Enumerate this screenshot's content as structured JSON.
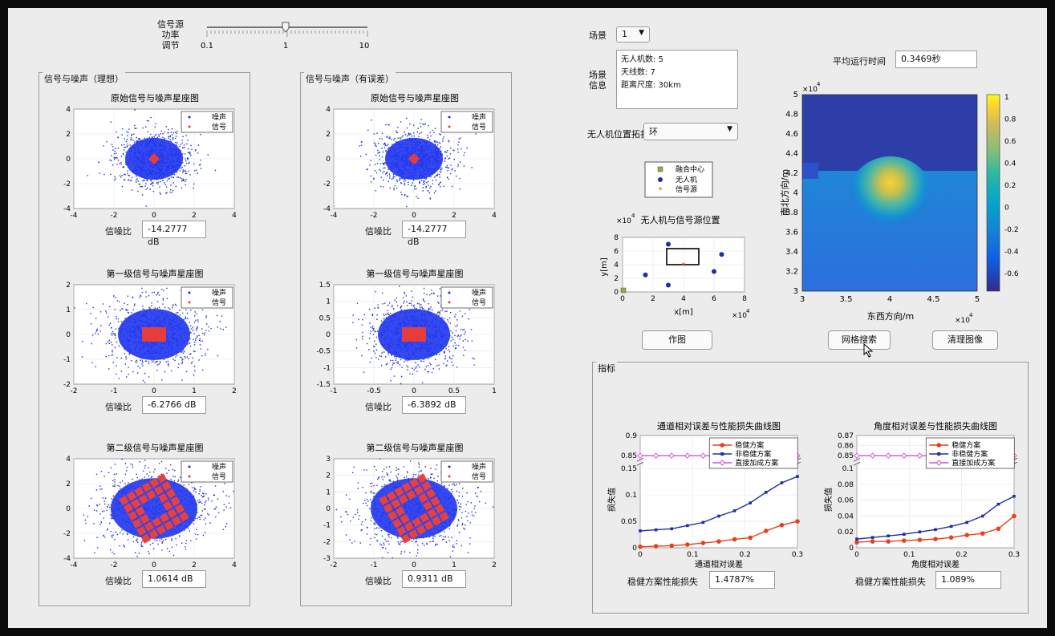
{
  "slider": {
    "label_lines": [
      "信号源",
      "功率",
      "调节"
    ],
    "ticks": [
      "0.1",
      "1",
      "10"
    ],
    "value": 1
  },
  "left_panel": {
    "title": "信号与噪声（理想）"
  },
  "right_panel": {
    "title": "信号与噪声（有误差）"
  },
  "snr_label": "信噪比",
  "legend": {
    "noise": "噪声",
    "signal": "信号"
  },
  "constellations": {
    "ideal": [
      {
        "title": "原始信号与噪声星座图",
        "snr": "-14.2777 dB",
        "xticks": [
          "-4",
          "-2",
          "0",
          "2",
          "4"
        ],
        "yticks": [
          "4",
          "2",
          "0",
          "-2",
          "-4"
        ]
      },
      {
        "title": "第一级信号与噪声星座图",
        "snr": "-6.2766 dB",
        "xticks": [
          "-2",
          "-1",
          "0",
          "1",
          "2"
        ],
        "yticks": [
          "2",
          "1",
          "0",
          "-1",
          "-2"
        ]
      },
      {
        "title": "第二级信号与噪声星座图",
        "snr": "1.0614 dB",
        "xticks": [
          "-4",
          "-2",
          "0",
          "2",
          "4"
        ],
        "yticks": [
          "4",
          "2",
          "0",
          "-2",
          "-4"
        ]
      }
    ],
    "error": [
      {
        "title": "原始信号与噪声星座图",
        "snr": "-14.2777 dB",
        "xticks": [
          "-4",
          "-2",
          "0",
          "2",
          "4"
        ],
        "yticks": [
          "4",
          "2",
          "0",
          "-2",
          "-4"
        ]
      },
      {
        "title": "第一级信号与噪声星座图",
        "snr": "-6.3892 dB",
        "xticks": [
          "-1",
          "-0.5",
          "0",
          "0.5",
          "1"
        ],
        "yticks": [
          "1.5",
          "1",
          "0.5",
          "0",
          "-0.5",
          "-1",
          "-1.5"
        ]
      },
      {
        "title": "第二级信号与噪声星座图",
        "snr": "0.9311 dB",
        "xticks": [
          "-2",
          "-1",
          "0",
          "1",
          "2"
        ],
        "yticks": [
          "3",
          "2",
          "1",
          "0",
          "-1",
          "-2",
          "-3"
        ]
      }
    ]
  },
  "scene": {
    "label": "场景",
    "value": "1"
  },
  "scene_info": {
    "label_lines": [
      "场景",
      "信息"
    ],
    "lines": [
      "无人机数:  5",
      "天线数:  7",
      "距离尺度:  30km"
    ]
  },
  "avg_time": {
    "label": "平均运行时间",
    "value": "0.3469秒"
  },
  "topology": {
    "label": "无人机位置拓扑",
    "value": "环"
  },
  "position_plot": {
    "title": "无人机与信号源位置",
    "legend": [
      "融合中心",
      "无人机",
      "信号源"
    ],
    "xlabel": "x[m]",
    "ylabel": "y[m]",
    "exp_x": "×10",
    "exp_y": "×10",
    "exp_power": "4",
    "xticks": [
      "0",
      "2",
      "4",
      "6",
      "8"
    ],
    "yticks": [
      "8",
      "6",
      "4",
      "2",
      "0"
    ]
  },
  "heatmap": {
    "xlabel": "东西方向/m",
    "ylabel": "南北方向/m",
    "exp_x": "×10",
    "exp_y": "×10",
    "exp_power": "4",
    "xticks": [
      "3",
      "3.5",
      "4",
      "4.5",
      "5"
    ],
    "yticks": [
      "5",
      "4.8",
      "4.6",
      "4.4",
      "4.2",
      "4",
      "3.8",
      "3.6",
      "3.4",
      "3.2",
      "3"
    ],
    "cbar_ticks": [
      "1",
      "0.8",
      "0.6",
      "0.4",
      "0.2",
      "0",
      "-0.2",
      "-0.4",
      "-0.6"
    ]
  },
  "buttons": {
    "plot": "作图",
    "grid_search": "网格搜索",
    "clear": "清理图像"
  },
  "metrics_panel": {
    "title": "指标"
  },
  "channel_chart": {
    "title": "通道相对误差与性能损失曲线图",
    "xlabel": "通道相对误差",
    "ylabel": "损失值",
    "xticks": [
      "0",
      "0.1",
      "0.2",
      "0.3"
    ],
    "yticks_top": [
      "0.9",
      "0.85"
    ],
    "yticks_bottom": [
      "0.15",
      "0.1",
      "0.05",
      "0"
    ],
    "legend": [
      "稳健方案",
      "非稳健方案",
      "直接加成方案"
    ],
    "loss_label": "稳健方案性能损失",
    "loss_value": "1.4787%"
  },
  "angle_chart": {
    "title": "角度相对误差与性能损失曲线图",
    "xlabel": "角度相对误差",
    "ylabel": "损失值",
    "xticks": [
      "0",
      "0.1",
      "0.2",
      "0.3"
    ],
    "yticks_top": [
      "0.87",
      "0.86",
      "0.85"
    ],
    "yticks_bottom": [
      "0.1",
      "0.08",
      "0.06",
      "0.04",
      "0.02",
      "0"
    ],
    "legend": [
      "稳健方案",
      "非稳健方案",
      "直接加成方案"
    ],
    "loss_label": "稳健方案性能损失",
    "loss_value": "1.089%"
  },
  "chart_data": [
    {
      "type": "line",
      "title": "通道相对误差与性能损失曲线图",
      "xlabel": "通道相对误差",
      "ylabel": "损失值",
      "x": [
        0,
        0.03,
        0.06,
        0.09,
        0.12,
        0.15,
        0.18,
        0.21,
        0.24,
        0.27,
        0.3
      ],
      "series": [
        {
          "name": "稳健方案",
          "color": "#e8401c",
          "values": [
            0.002,
            0.003,
            0.004,
            0.006,
            0.009,
            0.012,
            0.016,
            0.019,
            0.032,
            0.043,
            0.05
          ]
        },
        {
          "name": "非稳健方案",
          "color": "#1d2ea8",
          "values": [
            0.032,
            0.034,
            0.036,
            0.042,
            0.048,
            0.06,
            0.07,
            0.085,
            0.105,
            0.123,
            0.135
          ]
        },
        {
          "name": "直接加成方案",
          "color": "#d34fd8",
          "values": [
            0.85,
            0.85,
            0.85,
            0.85,
            0.85,
            0.85,
            0.85,
            0.85,
            0.85,
            0.85,
            0.85
          ]
        }
      ]
    },
    {
      "type": "line",
      "title": "角度相对误差与性能损失曲线图",
      "xlabel": "角度相对误差",
      "ylabel": "损失值",
      "x": [
        0,
        0.03,
        0.06,
        0.09,
        0.12,
        0.15,
        0.18,
        0.21,
        0.24,
        0.27,
        0.3
      ],
      "series": [
        {
          "name": "稳健方案",
          "color": "#e8401c",
          "values": [
            0.007,
            0.008,
            0.008,
            0.009,
            0.01,
            0.011,
            0.013,
            0.016,
            0.018,
            0.024,
            0.04
          ]
        },
        {
          "name": "非稳健方案",
          "color": "#1d2ea8",
          "values": [
            0.011,
            0.013,
            0.015,
            0.017,
            0.02,
            0.023,
            0.027,
            0.032,
            0.04,
            0.055,
            0.065
          ]
        },
        {
          "name": "直接加成方案",
          "color": "#d34fd8",
          "values": [
            0.85,
            0.85,
            0.85,
            0.85,
            0.85,
            0.85,
            0.85,
            0.85,
            0.85,
            0.85,
            0.85
          ]
        }
      ]
    }
  ],
  "uav_positions": {
    "fusion_center": [
      0,
      0
    ],
    "uavs": [
      [
        3,
        7
      ],
      [
        1.5,
        2.5
      ],
      [
        3,
        1
      ],
      [
        6.5,
        5.5
      ],
      [
        6,
        3
      ]
    ],
    "signal_source": [
      4,
      4
    ]
  }
}
